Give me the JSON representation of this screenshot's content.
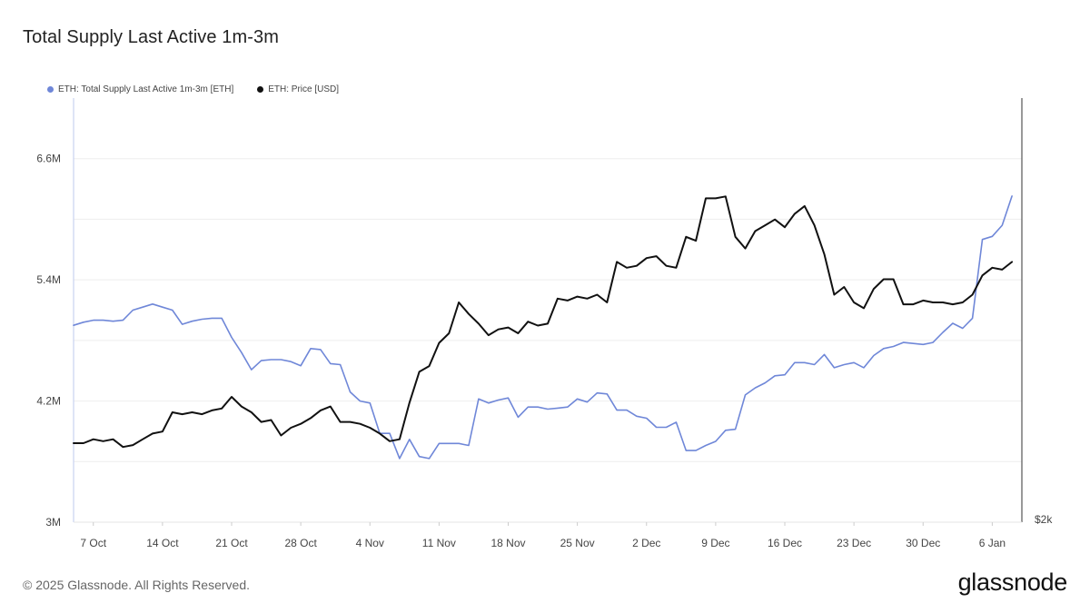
{
  "header": {
    "title": "Total Supply Last Active 1m-3m"
  },
  "footer": {
    "copyright": "© 2025 Glassnode. All Rights Reserved.",
    "brand": "glassnode"
  },
  "chart_data": {
    "type": "line",
    "title": "Total Supply Last Active 1m-3m",
    "legend_position": "top-left",
    "grid": true,
    "x_tick_labels": [
      "7 Oct",
      "14 Oct",
      "21 Oct",
      "28 Oct",
      "4 Nov",
      "11 Nov",
      "18 Nov",
      "25 Nov",
      "2 Dec",
      "9 Dec",
      "16 Dec",
      "23 Dec",
      "30 Dec",
      "6 Jan"
    ],
    "x_range_days": [
      0,
      96
    ],
    "y_left": {
      "ticks": [
        "3M",
        "4.2M",
        "5.4M",
        "6.6M"
      ],
      "range": [
        3000000,
        7200000
      ]
    },
    "y_right": {
      "ticks": [
        "$2k"
      ],
      "range_usd": [
        2000,
        4200
      ]
    },
    "series": [
      {
        "name": "ETH: Total Supply Last Active 1m-3m [ETH]",
        "axis": "left",
        "color": "#6f87d8",
        "values": [
          4950000,
          4980000,
          5000000,
          5000000,
          4990000,
          5000000,
          5100000,
          5130000,
          5160000,
          5130000,
          5100000,
          4960000,
          4990000,
          5010000,
          5020000,
          5020000,
          4830000,
          4680000,
          4510000,
          4600000,
          4610000,
          4610000,
          4590000,
          4550000,
          4720000,
          4710000,
          4570000,
          4560000,
          4290000,
          4200000,
          4180000,
          3880000,
          3880000,
          3630000,
          3820000,
          3650000,
          3630000,
          3780000,
          3780000,
          3780000,
          3760000,
          4220000,
          4180000,
          4210000,
          4230000,
          4040000,
          4140000,
          4140000,
          4120000,
          4130000,
          4140000,
          4220000,
          4190000,
          4280000,
          4270000,
          4110000,
          4110000,
          4050000,
          4030000,
          3940000,
          3940000,
          3990000,
          3710000,
          3710000,
          3760000,
          3800000,
          3910000,
          3920000,
          4260000,
          4330000,
          4380000,
          4450000,
          4460000,
          4580000,
          4580000,
          4560000,
          4660000,
          4530000,
          4560000,
          4580000,
          4530000,
          4650000,
          4720000,
          4740000,
          4780000,
          4770000,
          4760000,
          4780000,
          4880000,
          4970000,
          4920000,
          5020000,
          5800000,
          5830000,
          5940000,
          6230000
        ]
      },
      {
        "name": "ETH: Price [USD]",
        "axis": "right",
        "color": "#111111",
        "values": [
          2410,
          2410,
          2430,
          2420,
          2430,
          2390,
          2400,
          2430,
          2460,
          2470,
          2570,
          2560,
          2570,
          2560,
          2580,
          2590,
          2650,
          2600,
          2570,
          2520,
          2530,
          2450,
          2490,
          2510,
          2540,
          2580,
          2600,
          2520,
          2520,
          2510,
          2490,
          2460,
          2420,
          2430,
          2620,
          2780,
          2810,
          2930,
          2980,
          3140,
          3080,
          3030,
          2970,
          3000,
          3010,
          2980,
          3040,
          3020,
          3030,
          3160,
          3150,
          3170,
          3160,
          3180,
          3140,
          3350,
          3320,
          3330,
          3370,
          3380,
          3330,
          3320,
          3480,
          3460,
          3680,
          3680,
          3690,
          3480,
          3420,
          3510,
          3540,
          3570,
          3530,
          3600,
          3640,
          3540,
          3390,
          3180,
          3220,
          3140,
          3110,
          3210,
          3260,
          3260,
          3130,
          3130,
          3150,
          3140,
          3140,
          3130,
          3140,
          3180,
          3280,
          3320,
          3310,
          3350
        ]
      }
    ]
  }
}
